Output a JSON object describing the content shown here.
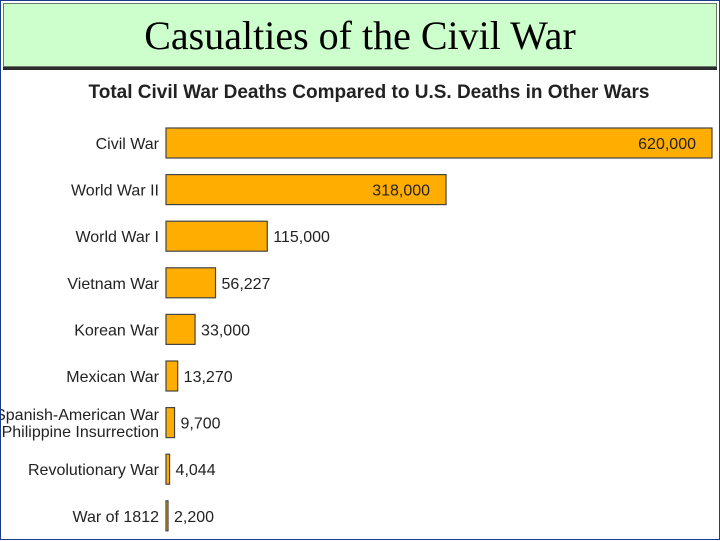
{
  "slide": {
    "title": "Casualties of the Civil War"
  },
  "chart_data": {
    "type": "bar",
    "orientation": "horizontal",
    "title": "Total Civil War Deaths Compared to U.S. Deaths in Other Wars",
    "categories": [
      [
        "Civil War"
      ],
      [
        "World War II"
      ],
      [
        "World War I"
      ],
      [
        "Vietnam War"
      ],
      [
        "Korean War"
      ],
      [
        "Mexican War"
      ],
      [
        "Spanish-American War",
        "and Philippine Insurrection"
      ],
      [
        "Revolutionary War"
      ],
      [
        "War of 1812"
      ]
    ],
    "values": [
      620000,
      318000,
      115000,
      56227,
      33000,
      13270,
      9700,
      4044,
      2200
    ],
    "value_labels": [
      "620,000",
      "318,000",
      "115,000",
      "56,227",
      "33,000",
      "13,270",
      "9,700",
      "4,044",
      "2,200"
    ],
    "xlim": [
      0,
      620000
    ],
    "grid": false,
    "bar_color": "#ffad00",
    "bar_edge_color": "#444444"
  }
}
